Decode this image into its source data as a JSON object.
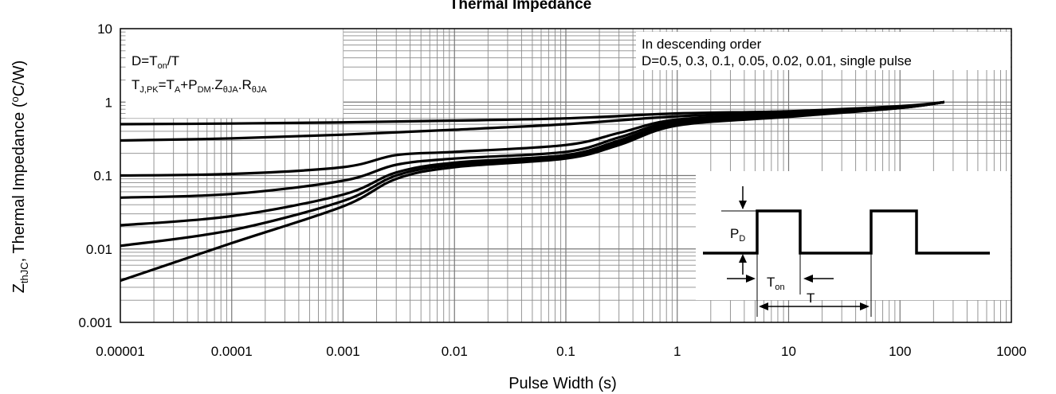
{
  "chart_data": {
    "type": "line",
    "title": "Thermal Impedance",
    "xlabel": "Pulse Width (s)",
    "ylabel": {
      "main": "Z",
      "sub": "thJC",
      "rest": ", Thermal Impedance (",
      "sup": "o",
      "unit": "C/W)"
    },
    "x_scale": "log",
    "y_scale": "log",
    "xlim": [
      1e-05,
      1000
    ],
    "ylim": [
      0.001,
      10
    ],
    "x_ticks": [
      "0.00001",
      "0.0001",
      "0.001",
      "0.01",
      "0.1",
      "1",
      "10",
      "100",
      "1000"
    ],
    "y_ticks": [
      "0.001",
      "0.01",
      "0.1",
      "1",
      "10"
    ],
    "grid": true,
    "legend_note": {
      "line1": "In descending order",
      "line2": "D=0.5, 0.3, 0.1, 0.05, 0.02, 0.01, single pulse"
    },
    "formula_box": {
      "d_prefix": "D=T",
      "d_sub": "on",
      "d_suffix": "/T",
      "tj_T": "T",
      "tj_sub": "J,PK",
      "tj_eqT": "=T",
      "tj_subA": "A",
      "tj_plusP": "+P",
      "tj_subDM": "DM",
      "tj_dotZ": ".Z",
      "tj_subZ": "θJA",
      "tj_dotR": ".R",
      "tj_subR": "θJA"
    },
    "inset": {
      "pd_main": "P",
      "pd_sub": "D",
      "ton_main": "T",
      "ton_sub": "on",
      "t_label": "T"
    },
    "series": [
      {
        "x": [
          1e-05,
          0.0001,
          0.001,
          0.01,
          0.1,
          1,
          10,
          100,
          250
        ],
        "values": [
          0.5,
          0.51,
          0.53,
          0.56,
          0.6,
          0.7,
          0.75,
          0.88,
          1.0
        ]
      },
      {
        "x": [
          1e-05,
          0.0001,
          0.001,
          0.01,
          0.1,
          1,
          10,
          100,
          250
        ],
        "values": [
          0.3,
          0.32,
          0.36,
          0.42,
          0.5,
          0.64,
          0.72,
          0.86,
          1.0
        ]
      },
      {
        "x": [
          1e-05,
          0.0001,
          0.001,
          0.003,
          0.01,
          0.1,
          0.3,
          1,
          10,
          100,
          250
        ],
        "values": [
          0.1,
          0.105,
          0.13,
          0.19,
          0.21,
          0.26,
          0.38,
          0.58,
          0.68,
          0.85,
          1.0
        ]
      },
      {
        "x": [
          1e-05,
          0.0001,
          0.001,
          0.003,
          0.01,
          0.1,
          0.3,
          1,
          10,
          100,
          250
        ],
        "values": [
          0.05,
          0.056,
          0.085,
          0.14,
          0.17,
          0.21,
          0.33,
          0.55,
          0.66,
          0.84,
          1.0
        ]
      },
      {
        "x": [
          1e-05,
          0.0001,
          0.001,
          0.003,
          0.01,
          0.1,
          0.3,
          1,
          10,
          100,
          250
        ],
        "values": [
          0.021,
          0.028,
          0.055,
          0.11,
          0.15,
          0.19,
          0.3,
          0.52,
          0.65,
          0.84,
          1.0
        ]
      },
      {
        "x": [
          1e-05,
          0.0001,
          0.001,
          0.003,
          0.01,
          0.1,
          0.3,
          1,
          10,
          100,
          250
        ],
        "values": [
          0.011,
          0.018,
          0.045,
          0.1,
          0.14,
          0.18,
          0.28,
          0.5,
          0.64,
          0.83,
          1.0
        ]
      },
      {
        "x": [
          1e-05,
          0.0001,
          0.001,
          0.003,
          0.01,
          0.1,
          0.3,
          1,
          10,
          100,
          250
        ],
        "values": [
          0.0037,
          0.012,
          0.038,
          0.09,
          0.13,
          0.17,
          0.26,
          0.48,
          0.63,
          0.83,
          1.0
        ]
      }
    ]
  }
}
